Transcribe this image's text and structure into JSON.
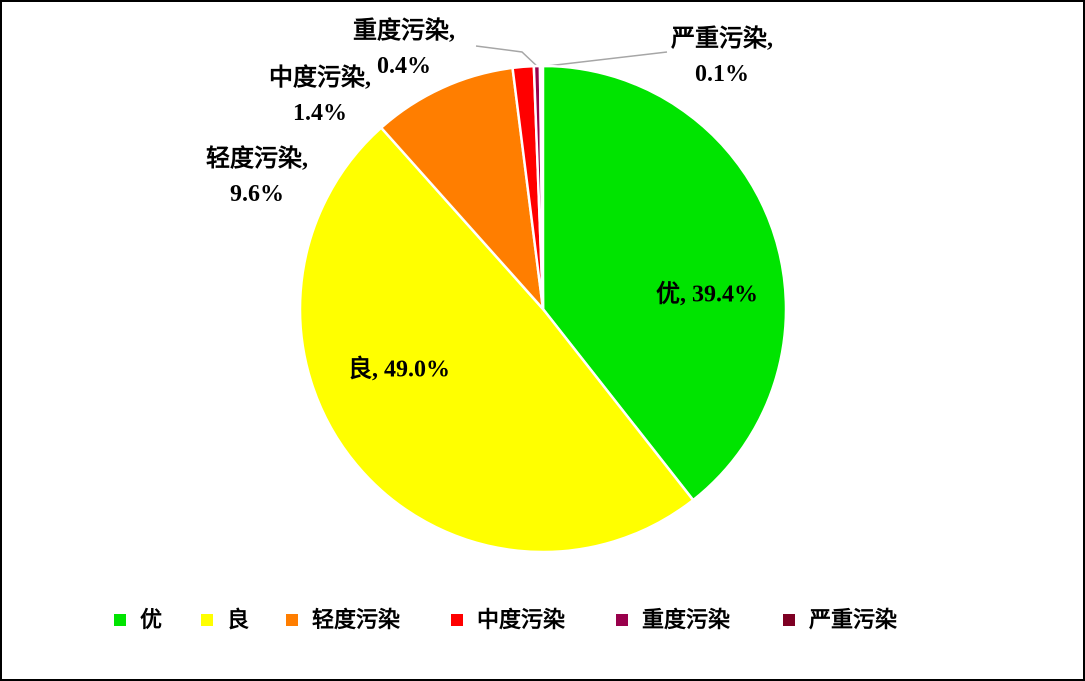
{
  "chart_data": {
    "type": "pie",
    "categories": [
      "优",
      "良",
      "轻度污染",
      "中度污染",
      "重度污染",
      "严重污染"
    ],
    "values": [
      39.4,
      49.0,
      9.6,
      1.4,
      0.4,
      0.1
    ],
    "value_labels": [
      "优, 39.4%",
      "良, 49.0%",
      "轻度污染,\n9.6%",
      "中度污染,\n1.4%",
      "重度污染,\n0.4%",
      "严重污染,\n0.1%"
    ],
    "colors": [
      "#00e400",
      "#ffff00",
      "#ff7e00",
      "#ff0000",
      "#99004c",
      "#7e0023"
    ],
    "legend_position": "bottom"
  }
}
